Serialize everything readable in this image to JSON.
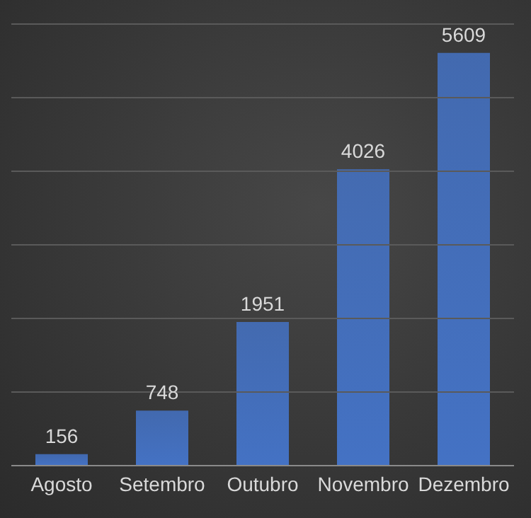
{
  "chart_data": {
    "type": "bar",
    "categories": [
      "Agosto",
      "Setembro",
      "Outubro",
      "Novembro",
      "Dezembro"
    ],
    "values": [
      156,
      748,
      1951,
      4026,
      5609
    ],
    "color": "#4472c4",
    "ylim": [
      0,
      6000
    ],
    "yticks": [
      {
        "value": 0,
        "label": null
      },
      {
        "value": 1000,
        "label": null
      },
      {
        "value": 2000,
        "label": null
      },
      {
        "value": 3000,
        "label": null
      },
      {
        "value": 4000,
        "label": null
      },
      {
        "value": 5000,
        "label": null
      },
      {
        "value": 6000,
        "label": null
      }
    ],
    "tick_labels": "x",
    "grid": "y",
    "data_labels": true
  }
}
